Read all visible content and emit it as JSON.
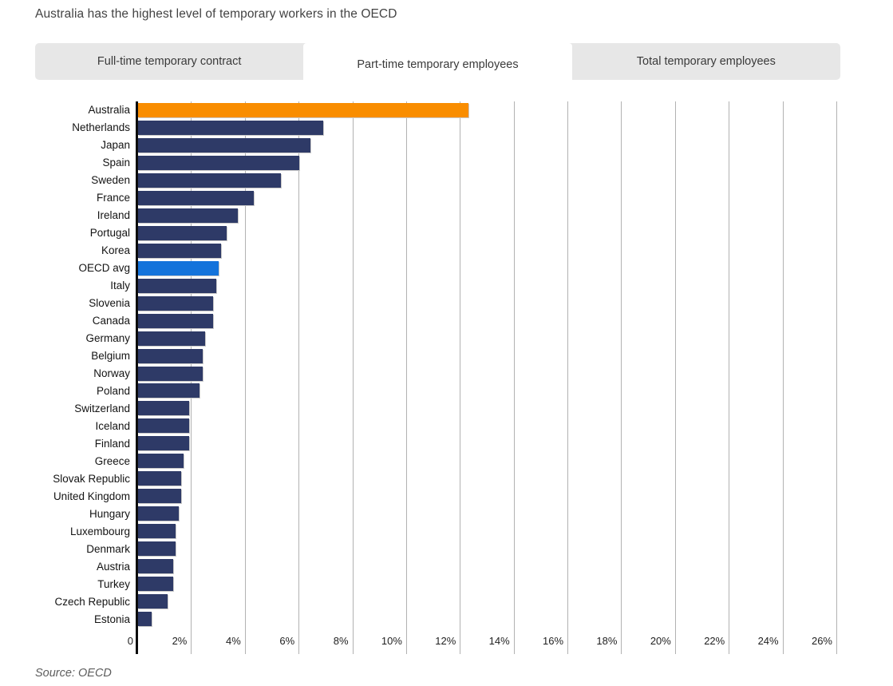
{
  "page": {
    "title": "Australia has the highest level of temporary workers in the OECD",
    "source": "Source: OECD"
  },
  "tabs": [
    {
      "label": "Full-time temporary contract",
      "active": false
    },
    {
      "label": "Part-time temporary employees",
      "active": true
    },
    {
      "label": "Total temporary employees",
      "active": false
    }
  ],
  "colors": {
    "bar_default": "#2E3A67",
    "bar_highlight_australia": "#F98D00",
    "bar_highlight_oecd": "#1473DB",
    "tab_bar_bg": "#E7E7E7",
    "active_tab_bg": "#FFFFFF",
    "gridline": "#B2B2B2",
    "axis_line": "#0C0C0C"
  },
  "chart_data": {
    "type": "bar",
    "orientation": "horizontal",
    "title": "Part-time temporary employees",
    "xlabel": "",
    "ylabel": "",
    "unit": "%",
    "xlim": [
      0,
      26
    ],
    "tick_step": 2,
    "grid": true,
    "x_ticks": [
      "0",
      "2%",
      "4%",
      "6%",
      "8%",
      "10%",
      "12%",
      "14%",
      "16%",
      "18%",
      "20%",
      "22%",
      "24%",
      "26%"
    ],
    "categories": [
      "Australia",
      "Netherlands",
      "Japan",
      "Spain",
      "Sweden",
      "France",
      "Ireland",
      "Portugal",
      "Korea",
      "OECD avg",
      "Italy",
      "Slovenia",
      "Canada",
      "Germany",
      "Belgium",
      "Norway",
      "Poland",
      "Switzerland",
      "Iceland",
      "Finland",
      "Greece",
      "Slovak Republic",
      "United Kingdom",
      "Hungary",
      "Luxembourg",
      "Denmark",
      "Austria",
      "Turkey",
      "Czech Republic",
      "Estonia"
    ],
    "values": [
      12.3,
      6.9,
      6.4,
      6.0,
      5.3,
      4.3,
      3.7,
      3.3,
      3.1,
      3.0,
      2.9,
      2.8,
      2.8,
      2.5,
      2.4,
      2.4,
      2.3,
      1.9,
      1.9,
      1.9,
      1.7,
      1.6,
      1.6,
      1.5,
      1.4,
      1.4,
      1.3,
      1.3,
      1.1,
      0.5
    ],
    "point_colors": {
      "Australia": "#F98D00",
      "OECD avg": "#1473DB"
    },
    "default_color": "#2E3A67"
  }
}
